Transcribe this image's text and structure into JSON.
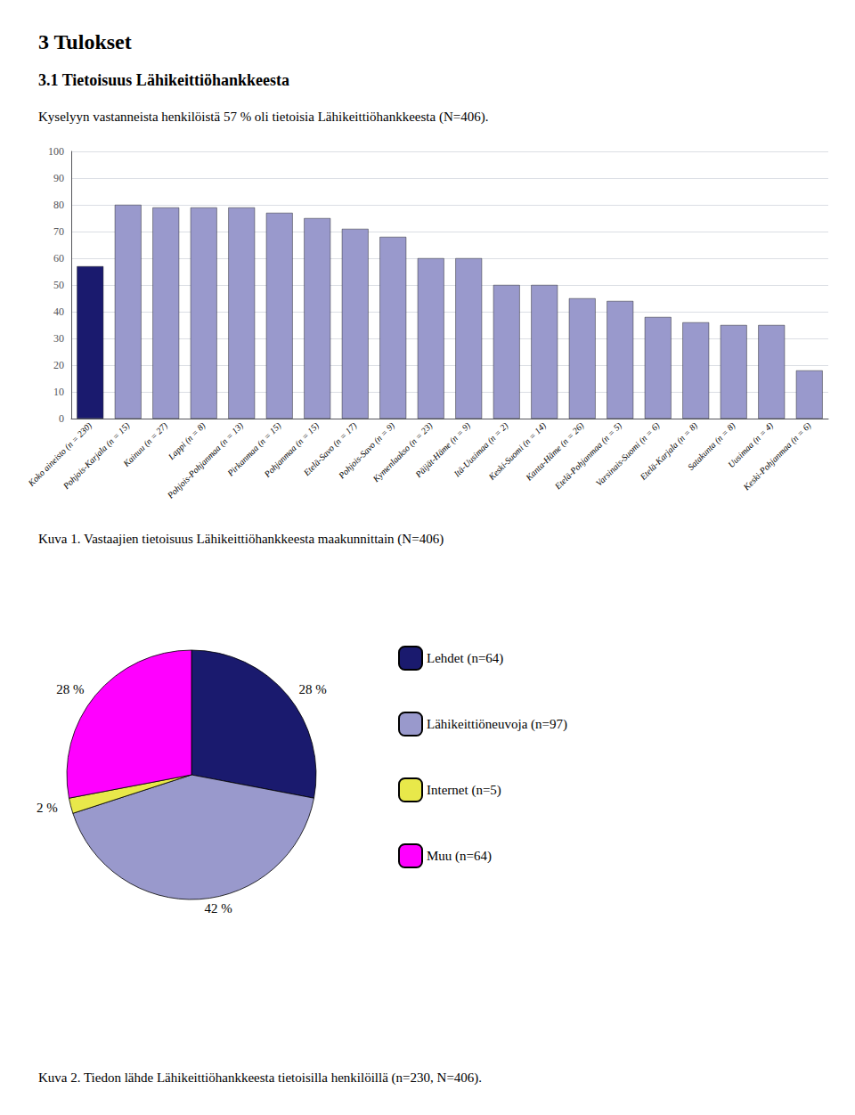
{
  "chart_data": [
    {
      "type": "bar",
      "title": "3 Tulokset",
      "subtitle": "3.1 Tietoisuus Lähikeittiöhankkeesta",
      "annotations": [
        "Kyselyyn vastanneista henkilöistä 57 % oli tietoisia Lähikeittiöhankkeesta (N=406).",
        "Kuva 1. Vastaajien tietoisuus Lähikeittiöhankkeesta maakunnittain (N=406)"
      ],
      "categories": [
        "Koko aineisto (n = 230)",
        "Pohjois-Karjala (n = 15)",
        "Kainuu (n = 27)",
        "Lappi (n = 8)",
        "Pohjois-Pohjanmaa (n = 13)",
        "Pirkanmaa (n = 15)",
        "Pohjanmaa (n = 15)",
        "Etelä-Savo (n = 17)",
        "Pohjois-Savo (n = 9)",
        "Kymenlaakso (n = 23)",
        "Päijät-Häme (n = 9)",
        "Itä-Uusimaa (n = 2)",
        "Keski-Suomi (n = 14)",
        "Kanta-Häme (n = 26)",
        "Etelä-Pohjanmaa (n = 5)",
        "Varsinais-Suomi (n = 6)",
        "Etelä-Karjala (n = 8)",
        "Satakunta (n = 8)",
        "Uusimaa (n = 4)",
        "Keski-Pohjanmaa (n = 6)"
      ],
      "values": [
        57,
        80,
        79,
        79,
        79,
        77,
        75,
        71,
        68,
        60,
        60,
        50,
        50,
        45,
        44,
        38,
        36,
        35,
        35,
        18
      ],
      "colors": [
        "#1a1a6e",
        "#9999cc",
        "#9999cc",
        "#9999cc",
        "#9999cc",
        "#9999cc",
        "#9999cc",
        "#9999cc",
        "#9999cc",
        "#9999cc",
        "#9999cc",
        "#9999cc",
        "#9999cc",
        "#9999cc",
        "#9999cc",
        "#9999cc",
        "#9999cc",
        "#9999cc",
        "#9999cc",
        "#9999cc"
      ],
      "ylim": [
        0,
        100
      ],
      "yticks": [
        0,
        10,
        20,
        30,
        40,
        50,
        60,
        70,
        80,
        90,
        100
      ],
      "grid": true
    },
    {
      "type": "pie",
      "annotations": [
        "Kuva 2. Tiedon lähde Lähikeittiöhankkeesta tietoisilla henkilöillä (n=230, N=406)."
      ],
      "categories": [
        "Lehdet (n=64)",
        "Lähikeittiöneuvoja (n=97)",
        "Internet (n=5)",
        "Muu (n=64)"
      ],
      "values": [
        28,
        42,
        2,
        28
      ],
      "value_labels": [
        "28 %",
        "42 %",
        "2 %",
        "28 %"
      ],
      "colors": [
        "#1a1a6e",
        "#9999cc",
        "#e8e84a",
        "#ff00ff"
      ],
      "data_labels": true,
      "legend": "right"
    }
  ]
}
